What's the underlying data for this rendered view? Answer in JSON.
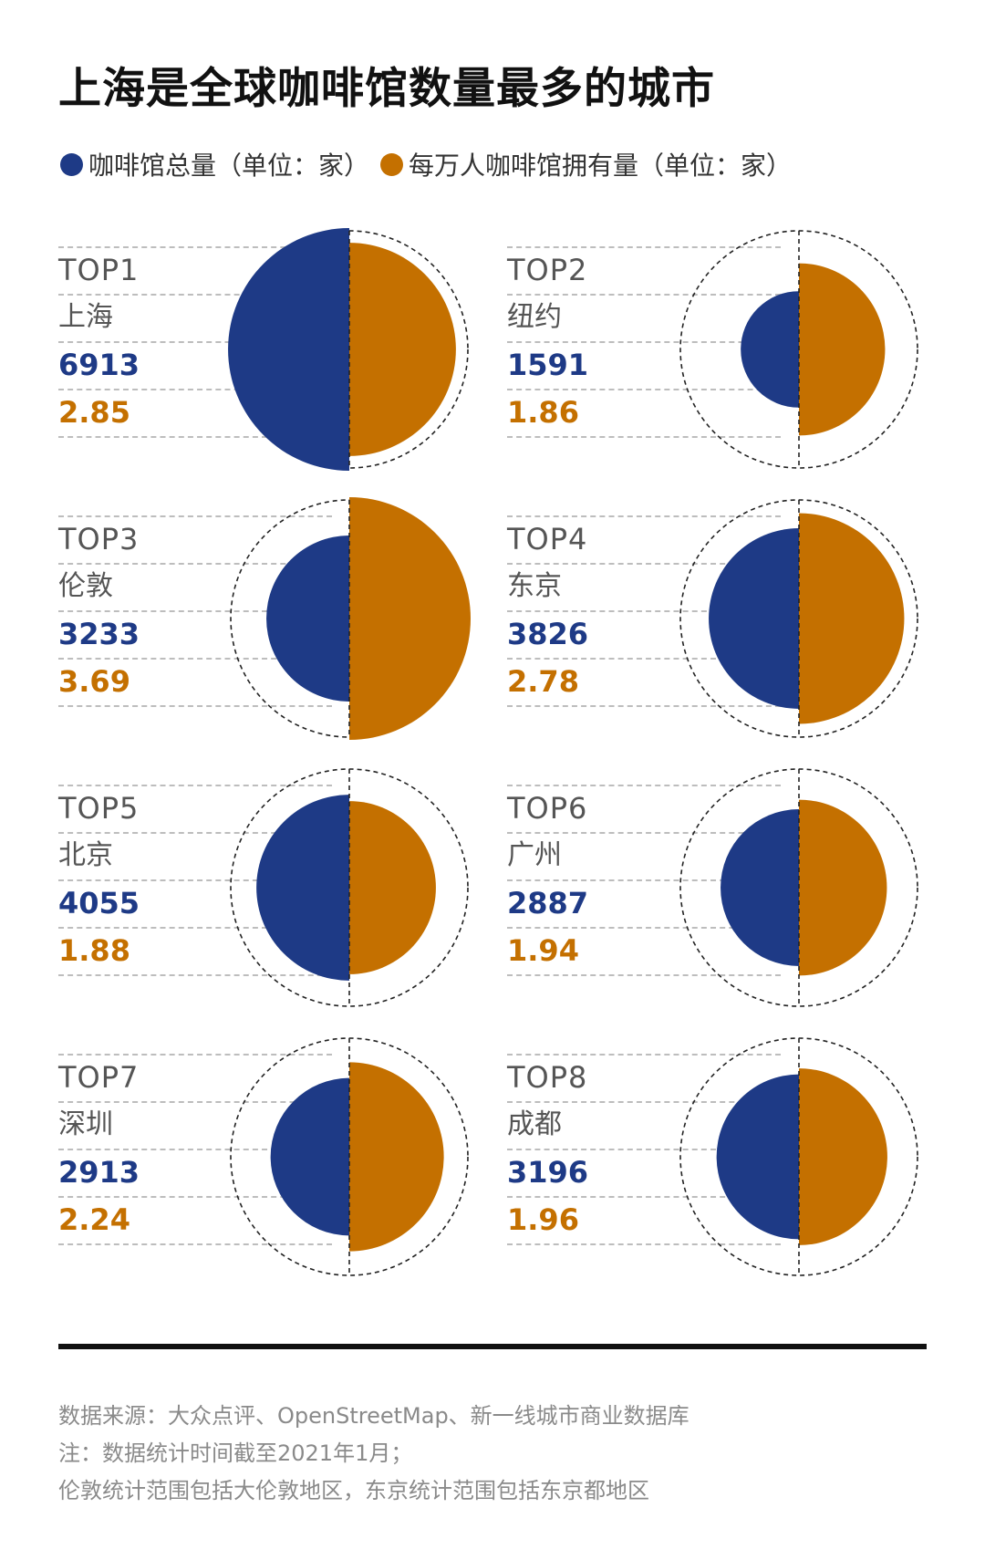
{
  "title": "上海是全球咖啡馆数量最多的城市",
  "legend": {
    "total": {
      "label": "咖啡馆总量（单位：家）",
      "color": "#1e3a86"
    },
    "per": {
      "label": "每万人咖啡馆拥有量（单位：家）",
      "color": "#c47000"
    }
  },
  "chart_data": {
    "type": "half-circle comparison",
    "series": [
      {
        "name": "咖啡馆总量（单位：家）",
        "color": "#1e3a86"
      },
      {
        "name": "每万人咖啡馆拥有量（单位：家）",
        "color": "#c47000"
      }
    ],
    "items": [
      {
        "rank": "TOP1",
        "city": "上海",
        "total": 6913,
        "per10k": 2.85,
        "total_label": "6913",
        "per10k_label": "2.85"
      },
      {
        "rank": "TOP2",
        "city": "纽约",
        "total": 1591,
        "per10k": 1.86,
        "total_label": "1591",
        "per10k_label": "1.86"
      },
      {
        "rank": "TOP3",
        "city": "伦敦",
        "total": 3233,
        "per10k": 3.69,
        "total_label": "3233",
        "per10k_label": "3.69"
      },
      {
        "rank": "TOP4",
        "city": "东京",
        "total": 3826,
        "per10k": 2.78,
        "total_label": "3826",
        "per10k_label": "2.78"
      },
      {
        "rank": "TOP5",
        "city": "北京",
        "total": 4055,
        "per10k": 1.88,
        "total_label": "4055",
        "per10k_label": "1.88"
      },
      {
        "rank": "TOP6",
        "city": "广州",
        "total": 2887,
        "per10k": 1.94,
        "total_label": "2887",
        "per10k_label": "1.94"
      },
      {
        "rank": "TOP7",
        "city": "深圳",
        "total": 2913,
        "per10k": 2.24,
        "total_label": "2913",
        "per10k_label": "2.24"
      },
      {
        "rank": "TOP8",
        "city": "成都",
        "total": 3196,
        "per10k": 1.96,
        "total_label": "3196",
        "per10k_label": "1.96"
      }
    ]
  },
  "notes": {
    "source": "数据来源：大众点评、OpenStreetMap、新一线城市商业数据库",
    "note1": "注：数据统计时间截至2021年1月；",
    "note2": "伦敦统计范围包括大伦敦地区，东京统计范围包括东京都地区"
  }
}
